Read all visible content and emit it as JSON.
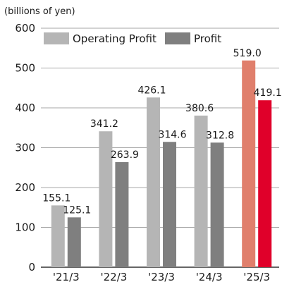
{
  "chart_data": {
    "type": "bar",
    "unit_label": "(billions of yen)",
    "categories": [
      "'21/3",
      "'22/3",
      "'23/3",
      "'24/3",
      "'25/3"
    ],
    "series": [
      {
        "name": "Operating Profit",
        "values": [
          155.1,
          341.2,
          426.1,
          380.6,
          519.0
        ],
        "labels": [
          "155.1",
          "341.2",
          "426.1",
          "380.6",
          "519.0"
        ],
        "color": "#b5b5b5",
        "highlight_color": "#e07f6c"
      },
      {
        "name": "Profit",
        "values": [
          125.1,
          263.9,
          314.6,
          312.8,
          419.1
        ],
        "labels": [
          "125.1",
          "263.9",
          "314.6",
          "312.8",
          "419.1"
        ],
        "color": "#7f7f7f",
        "highlight_color": "#e0002a"
      }
    ],
    "highlight_category_index": 4,
    "ylim": [
      0,
      600
    ],
    "yticks": [
      0,
      100,
      200,
      300,
      400,
      500,
      600
    ],
    "grid": true,
    "legend": "top-left"
  }
}
